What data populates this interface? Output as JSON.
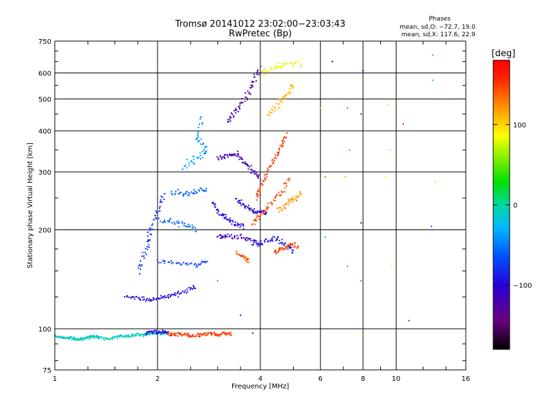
{
  "chart_data": {
    "type": "scatter",
    "title": "Tromsø 20141012 23:02:00−23:03:43",
    "subtitle": "RwPretec (Bp)",
    "xlabel": "Frequency [MHz]",
    "ylabel": "Stationary phase Virtual Height [km]",
    "x_scale": "log",
    "y_scale": "log",
    "xlim": [
      1,
      16
    ],
    "ylim": [
      75,
      750
    ],
    "x_ticks": [
      1,
      2,
      4,
      6,
      8,
      10,
      16
    ],
    "x_tick_labels": [
      "1",
      "2",
      "4",
      "6",
      "8",
      "10",
      "16"
    ],
    "y_ticks": [
      75,
      100,
      200,
      300,
      400,
      500,
      600,
      750
    ],
    "y_tick_labels": [
      "75",
      "100",
      "200",
      "300",
      "400",
      "500",
      "600",
      "750"
    ],
    "grid": true,
    "stats": {
      "heading": "Phases",
      "o_mode": "mean, sd,O: −72.7, 19.0",
      "x_mode": "mean, sd,X: 117.6, 22.9"
    },
    "colorbar": {
      "label": "[deg]",
      "range": [
        -180,
        180
      ],
      "ticks": [
        100,
        0,
        -100
      ],
      "tick_labels": [
        "100",
        "0",
        "−100"
      ]
    },
    "traces": [
      {
        "points": [
          [
            1.0,
            95
          ],
          [
            1.05,
            94
          ],
          [
            1.1,
            94
          ],
          [
            1.15,
            93
          ],
          [
            1.2,
            93
          ],
          [
            1.25,
            94
          ],
          [
            1.3,
            95
          ],
          [
            1.35,
            94
          ],
          [
            1.45,
            93
          ],
          [
            1.55,
            95
          ],
          [
            1.65,
            95
          ],
          [
            1.75,
            96
          ],
          [
            1.85,
            96
          ],
          [
            1.95,
            97
          ],
          [
            2.05,
            97
          ],
          [
            2.15,
            96
          ]
        ],
        "phase": -10,
        "spread": 0.015
      },
      {
        "points": [
          [
            1.85,
            97
          ],
          [
            1.95,
            98
          ],
          [
            2.05,
            97
          ],
          [
            2.15,
            98
          ]
        ],
        "phase": -100,
        "spread": 0.02
      },
      {
        "points": [
          [
            2.15,
            96
          ],
          [
            2.25,
            96
          ],
          [
            2.4,
            96
          ],
          [
            2.55,
            95
          ],
          [
            2.7,
            96
          ],
          [
            2.85,
            97
          ],
          [
            3.0,
            96
          ],
          [
            3.15,
            97
          ],
          [
            3.3,
            96
          ]
        ],
        "phase": 150,
        "spread": 0.02
      },
      {
        "points": [
          [
            1.6,
            125
          ],
          [
            1.75,
            124
          ],
          [
            1.9,
            122
          ],
          [
            2.05,
            124
          ],
          [
            2.2,
            127
          ],
          [
            2.4,
            130
          ],
          [
            2.6,
            135
          ]
        ],
        "phase": -100,
        "spread": 0.02
      },
      {
        "points": [
          [
            1.75,
            150
          ],
          [
            1.85,
            175
          ],
          [
            1.9,
            200
          ],
          [
            2.0,
            230
          ],
          [
            2.1,
            260
          ]
        ],
        "phase": -80,
        "spread": 0.04
      },
      {
        "points": [
          [
            2.0,
            160
          ],
          [
            2.3,
            158
          ],
          [
            2.6,
            156
          ],
          [
            2.8,
            160
          ]
        ],
        "phase": -70,
        "spread": 0.025
      },
      {
        "points": [
          [
            2.0,
            215
          ],
          [
            2.2,
            212
          ],
          [
            2.4,
            208
          ],
          [
            2.6,
            200
          ]
        ],
        "phase": -55,
        "spread": 0.03
      },
      {
        "points": [
          [
            2.2,
            260
          ],
          [
            2.4,
            258
          ],
          [
            2.6,
            262
          ],
          [
            2.8,
            265
          ]
        ],
        "phase": -60,
        "spread": 0.03
      },
      {
        "points": [
          [
            2.4,
            310
          ],
          [
            2.6,
            330
          ],
          [
            2.8,
            350
          ],
          [
            2.6,
            380
          ],
          [
            2.7,
            440
          ]
        ],
        "phase": -40,
        "spread": 0.04
      },
      {
        "points": [
          [
            2.9,
            240
          ],
          [
            3.05,
            225
          ],
          [
            3.2,
            215
          ],
          [
            3.4,
            210
          ],
          [
            3.6,
            205
          ]
        ],
        "phase": -100,
        "spread": 0.03
      },
      {
        "points": [
          [
            3.0,
            190
          ],
          [
            3.2,
            192
          ],
          [
            3.5,
            190
          ],
          [
            3.8,
            185
          ],
          [
            4.1,
            180
          ]
        ],
        "phase": -110,
        "spread": 0.025
      },
      {
        "points": [
          [
            3.0,
            330
          ],
          [
            3.2,
            335
          ],
          [
            3.4,
            340
          ],
          [
            3.6,
            320
          ],
          [
            3.8,
            300
          ],
          [
            4.0,
            285
          ]
        ],
        "phase": -120,
        "spread": 0.03
      },
      {
        "points": [
          [
            3.4,
            250
          ],
          [
            3.6,
            235
          ],
          [
            3.8,
            228
          ],
          [
            4.0,
            225
          ],
          [
            4.2,
            222
          ]
        ],
        "phase": -100,
        "spread": 0.03
      },
      {
        "points": [
          [
            3.2,
            430
          ],
          [
            3.4,
            460
          ],
          [
            3.6,
            500
          ],
          [
            3.8,
            560
          ],
          [
            4.0,
            620
          ]
        ],
        "phase": -120,
        "spread": 0.04
      },
      {
        "points": [
          [
            3.8,
            180
          ],
          [
            4.2,
            185
          ],
          [
            4.5,
            188
          ],
          [
            4.8,
            180
          ],
          [
            5.0,
            170
          ]
        ],
        "phase": -90,
        "spread": 0.03
      },
      {
        "points": [
          [
            3.9,
            250
          ],
          [
            4.0,
            270
          ],
          [
            4.2,
            300
          ],
          [
            4.4,
            330
          ],
          [
            4.6,
            360
          ],
          [
            4.8,
            390
          ]
        ],
        "phase": 150,
        "spread": 0.03
      },
      {
        "points": [
          [
            3.8,
            210
          ],
          [
            4.0,
            220
          ],
          [
            4.3,
            240
          ],
          [
            4.6,
            260
          ],
          [
            4.9,
            290
          ]
        ],
        "phase": 145,
        "spread": 0.035
      },
      {
        "points": [
          [
            4.4,
            170
          ],
          [
            4.6,
            175
          ],
          [
            4.9,
            180
          ],
          [
            5.2,
            178
          ]
        ],
        "phase": 150,
        "spread": 0.025
      },
      {
        "points": [
          [
            3.4,
            170
          ],
          [
            3.6,
            165
          ],
          [
            3.7,
            160
          ]
        ],
        "phase": 140,
        "spread": 0.03
      },
      {
        "points": [
          [
            4.2,
            450
          ],
          [
            4.5,
            480
          ],
          [
            4.8,
            520
          ],
          [
            5.0,
            560
          ]
        ],
        "phase": 110,
        "spread": 0.04
      },
      {
        "points": [
          [
            4.0,
            600
          ],
          [
            4.4,
            620
          ],
          [
            4.8,
            640
          ],
          [
            5.3,
            650
          ]
        ],
        "phase": 80,
        "spread": 0.04
      },
      {
        "points": [
          [
            4.5,
            230
          ],
          [
            4.8,
            240
          ],
          [
            5.0,
            250
          ],
          [
            5.3,
            260
          ]
        ],
        "phase": 120,
        "spread": 0.04
      }
    ],
    "isolated_points": [
      [
        6.5,
        650,
        -160
      ],
      [
        8.0,
        610,
        -110
      ],
      [
        7.2,
        470,
        140
      ],
      [
        6.0,
        470,
        110
      ],
      [
        7.9,
        450,
        -150
      ],
      [
        9.5,
        480,
        100
      ],
      [
        10.5,
        420,
        160
      ],
      [
        12.8,
        680,
        20
      ],
      [
        12.8,
        570,
        -30
      ],
      [
        7.3,
        350,
        0
      ],
      [
        9.6,
        350,
        100
      ],
      [
        6.2,
        290,
        130
      ],
      [
        7.1,
        290,
        110
      ],
      [
        9.3,
        290,
        90
      ],
      [
        13.0,
        280,
        100
      ],
      [
        7.9,
        210,
        -160
      ],
      [
        12.7,
        205,
        -60
      ],
      [
        10.9,
        106,
        -60
      ],
      [
        6.2,
        190,
        -20
      ],
      [
        7.2,
        155,
        140
      ],
      [
        8.0,
        96,
        130
      ],
      [
        9.7,
        156,
        90
      ],
      [
        7.9,
        140,
        150
      ],
      [
        3.8,
        97,
        -150
      ],
      [
        3.0,
        140,
        -40
      ],
      [
        3.5,
        110,
        -100
      ],
      [
        2.3,
        125,
        -80
      ]
    ]
  }
}
